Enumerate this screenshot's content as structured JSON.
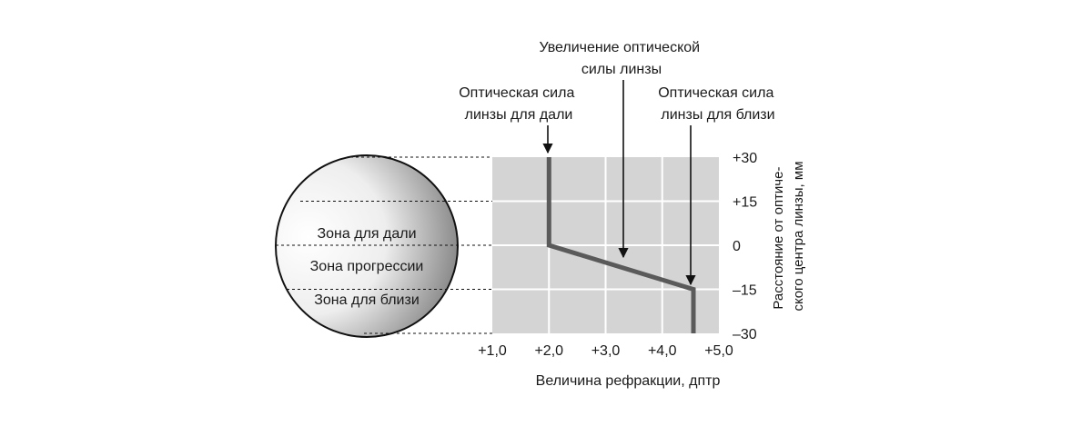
{
  "chart_data": {
    "type": "line",
    "xlabel": "Величина рефракции, дптр",
    "ylabel": [
      "Расстояние от оптиче-",
      "ского центра линзы, мм"
    ],
    "xlim": [
      1.0,
      5.0
    ],
    "ylim": [
      -30,
      30
    ],
    "x_ticks": [
      1.0,
      2.0,
      3.0,
      4.0,
      5.0
    ],
    "x_tick_labels": [
      "+1,0",
      "+2,0",
      "+3,0",
      "+4,0",
      "+5,0"
    ],
    "y_ticks": [
      30,
      15,
      0,
      -15,
      -30
    ],
    "y_tick_labels": [
      "+30",
      "+15",
      "0",
      "–15",
      "–30"
    ],
    "grid": true,
    "series": [
      {
        "x": [
          2.0,
          2.0,
          4.55,
          4.55
        ],
        "y": [
          30,
          0,
          -15,
          -30
        ]
      }
    ],
    "annotations": [
      {
        "text": [
          "Оптическая сила",
          "линзы для дали"
        ],
        "x": 2.0,
        "y": 30
      },
      {
        "text": [
          "Увеличение оптической",
          "силы линзы"
        ],
        "x": 3.25,
        "y": -3
      },
      {
        "text": [
          "Оптическая сила",
          "линзы для близи"
        ],
        "x": 4.55,
        "y": -12
      }
    ]
  },
  "lens": {
    "zones": [
      "Зона для дали",
      "Зона прогрессии",
      "Зона для близи"
    ]
  },
  "colors": {
    "plot_bg": "#d4d4d4",
    "grid": "#ffffff",
    "curve": "#5a5a5a",
    "text": "#1a1a1a"
  }
}
